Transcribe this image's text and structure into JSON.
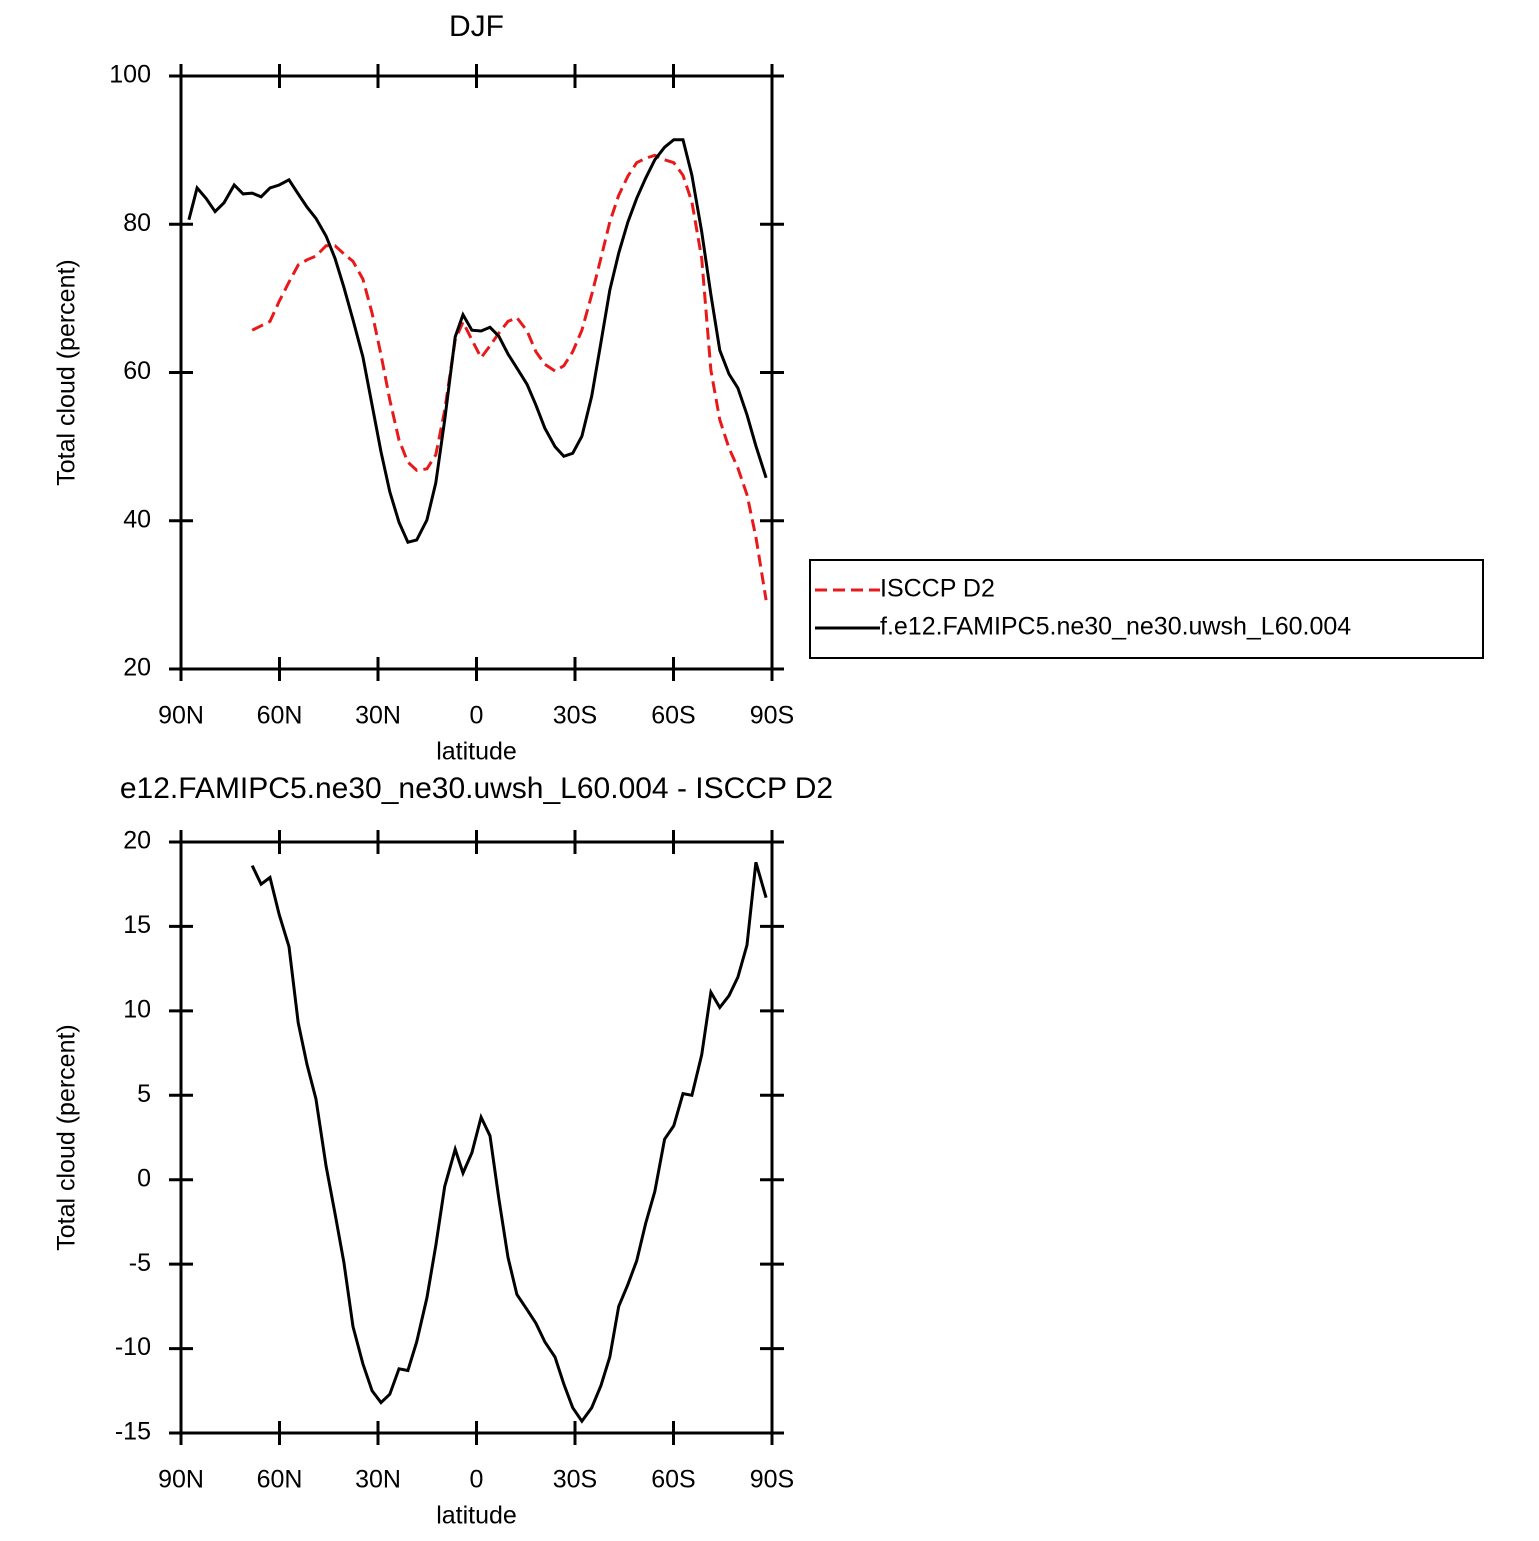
{
  "chart_data": [
    {
      "type": "line",
      "title": "DJF",
      "xlabel": "latitude",
      "ylabel": "Total cloud (percent)",
      "x": [
        87.6,
        85.1,
        82.4,
        79.6,
        76.9,
        73.8,
        71.1,
        68.3,
        65.6,
        62.9,
        60.1,
        57.1,
        54.3,
        51.6,
        48.9,
        45.8,
        43.1,
        40.4,
        37.6,
        34.6,
        31.8,
        29.1,
        26.4,
        23.6,
        20.9,
        18.2,
        15.1,
        12.4,
        9.7,
        6.5,
        4.1,
        1.4,
        -1.4,
        -4.1,
        -6.8,
        -9.6,
        -12.3,
        -15.4,
        -18.1,
        -20.8,
        -23.9,
        -26.6,
        -29.3,
        -32.1,
        -35.1,
        -37.9,
        -40.6,
        -43.3,
        -46.1,
        -48.8,
        -51.5,
        -54.3,
        -57.3,
        -60.1,
        -62.9,
        -65.6,
        -68.6,
        -71.4,
        -74.1,
        -76.9,
        -79.6,
        -82.4,
        -85.1,
        -88.2
      ],
      "series": [
        {
          "name": "ISCCP D2",
          "color": "#e8191b",
          "dashed": true,
          "values": [
            null,
            null,
            null,
            null,
            null,
            null,
            null,
            65.7,
            66.3,
            66.9,
            69.6,
            72.2,
            74.5,
            75.2,
            75.7,
            77.1,
            77.1,
            76.0,
            75.0,
            72.6,
            68.0,
            62.4,
            56.3,
            50.9,
            47.9,
            46.8,
            47.0,
            48.9,
            54.9,
            64.4,
            66.8,
            64.4,
            62.0,
            63.6,
            65.3,
            66.9,
            67.4,
            65.6,
            62.8,
            61.1,
            60.2,
            60.9,
            62.8,
            65.7,
            70.5,
            75.4,
            80.3,
            83.9,
            86.5,
            88.3,
            88.9,
            89.3,
            88.7,
            88.3,
            86.6,
            83.0,
            75.4,
            60.3,
            53.6,
            49.8,
            47.1,
            43.5,
            37.8,
            29.3
          ]
        },
        {
          "name": "f.e12.FAMIPC5.ne30_ne30.uwsh_L60.004",
          "color": "#000000",
          "dashed": false,
          "values": [
            80.6,
            84.9,
            83.5,
            81.7,
            82.9,
            85.3,
            84.1,
            84.2,
            83.7,
            84.9,
            85.3,
            86.0,
            84.1,
            82.3,
            80.8,
            78.4,
            75.4,
            71.5,
            67.1,
            62.1,
            55.6,
            49.3,
            43.9,
            39.8,
            37.1,
            37.4,
            40.1,
            45.1,
            53.6,
            64.8,
            67.8,
            65.7,
            65.6,
            66.1,
            64.9,
            62.5,
            60.6,
            58.4,
            55.6,
            52.5,
            50.0,
            48.7,
            49.1,
            51.4,
            56.8,
            64.0,
            71.1,
            76.1,
            80.3,
            83.5,
            86.2,
            88.7,
            90.4,
            91.4,
            91.4,
            86.6,
            79.0,
            70.5,
            63.0,
            59.8,
            57.9,
            54.3,
            50.1,
            45.8
          ]
        }
      ],
      "xlim": [
        90,
        -90
      ],
      "xticks": [
        {
          "value": 90,
          "label": "90N"
        },
        {
          "value": 60,
          "label": "60N"
        },
        {
          "value": 30,
          "label": "30N"
        },
        0,
        {
          "value": -30,
          "label": "30S"
        },
        {
          "value": -60,
          "label": "60S"
        },
        {
          "value": -90,
          "label": "90S"
        }
      ],
      "ylim": [
        20,
        100
      ],
      "yticks": [
        20,
        40,
        60,
        80,
        100
      ],
      "legend": "right"
    },
    {
      "type": "line",
      "title": "e12.FAMIPC5.ne30_ne30.uwsh_L60.004 - ISCCP D2",
      "xlabel": "latitude",
      "ylabel": "Total cloud (percent)",
      "x": [
        87.6,
        85.1,
        82.4,
        79.6,
        76.9,
        73.8,
        71.1,
        68.3,
        65.6,
        62.9,
        60.1,
        57.1,
        54.3,
        51.6,
        48.9,
        45.8,
        43.1,
        40.4,
        37.6,
        34.6,
        31.8,
        29.1,
        26.4,
        23.6,
        20.9,
        18.2,
        15.1,
        12.4,
        9.7,
        6.5,
        4.1,
        1.4,
        -1.4,
        -4.1,
        -6.8,
        -9.6,
        -12.3,
        -15.4,
        -18.1,
        -20.8,
        -23.9,
        -26.6,
        -29.3,
        -32.1,
        -35.1,
        -37.9,
        -40.6,
        -43.3,
        -46.1,
        -48.8,
        -51.5,
        -54.3,
        -57.3,
        -60.1,
        -62.9,
        -65.6,
        -68.6,
        -71.4,
        -74.1,
        -76.9,
        -79.6,
        -82.4,
        -85.1,
        -88.2
      ],
      "color": "#000000",
      "values": [
        null,
        null,
        null,
        null,
        null,
        null,
        null,
        18.6,
        17.5,
        17.9,
        15.7,
        13.8,
        9.3,
        6.8,
        4.8,
        0.8,
        -2.0,
        -4.9,
        -8.7,
        -10.9,
        -12.5,
        -13.2,
        -12.7,
        -11.2,
        -11.3,
        -9.6,
        -7.0,
        -3.9,
        -0.4,
        1.8,
        0.4,
        1.6,
        3.7,
        2.6,
        -1.1,
        -4.6,
        -6.8,
        -7.7,
        -8.5,
        -9.6,
        -10.5,
        -12.1,
        -13.5,
        -14.3,
        -13.5,
        -12.2,
        -10.5,
        -7.5,
        -6.2,
        -4.8,
        -2.6,
        -0.7,
        2.4,
        3.2,
        5.1,
        5.0,
        7.4,
        11.1,
        10.2,
        10.9,
        12.0,
        13.9,
        18.8,
        16.7
      ],
      "xlim": [
        90,
        -90
      ],
      "xticks": [
        {
          "value": 90,
          "label": "90N"
        },
        {
          "value": 60,
          "label": "60N"
        },
        {
          "value": 30,
          "label": "30N"
        },
        0,
        {
          "value": -30,
          "label": "30S"
        },
        {
          "value": -60,
          "label": "60S"
        },
        {
          "value": -90,
          "label": "90S"
        }
      ],
      "ylim": [
        -15,
        20
      ],
      "yticks": [
        -15,
        -10,
        -5,
        0,
        5,
        10,
        15,
        20
      ]
    }
  ]
}
